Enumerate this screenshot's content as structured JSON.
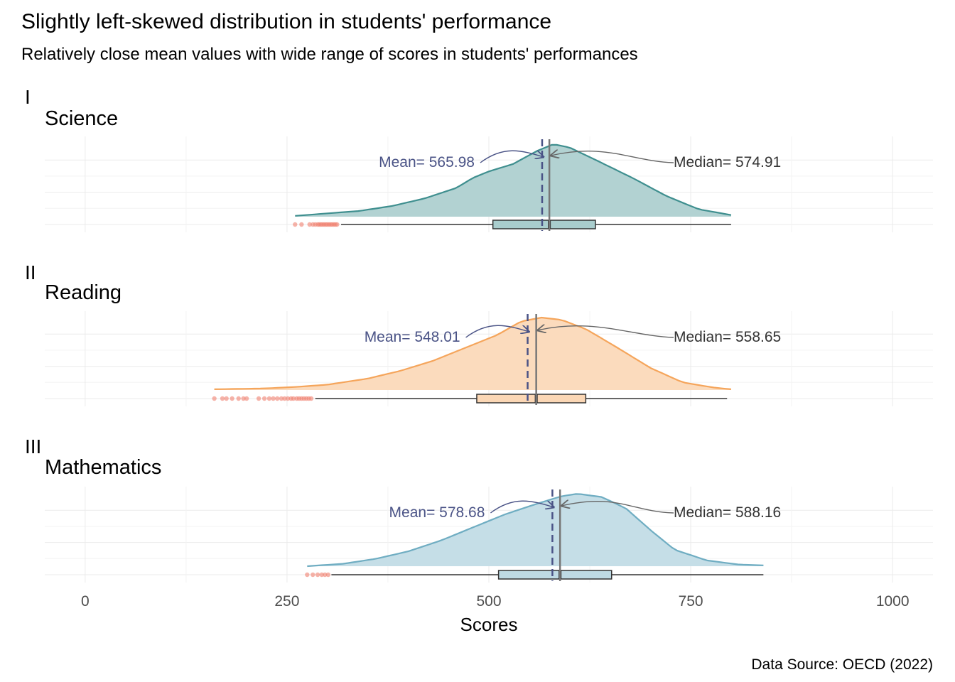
{
  "title": "Slightly left-skewed distribution in students' performance",
  "subtitle": "Relatively close mean values with wide range of scores in students' performances",
  "caption": "Data Source: OECD (2022)",
  "chart_data": {
    "type": "raincloud (density + boxplot)",
    "xlabel": "Scores",
    "xlim": [
      -50,
      1050
    ],
    "x_ticks": [
      "0",
      "250",
      "500",
      "750",
      "1000"
    ],
    "grid": "on",
    "panels": [
      {
        "roman": "I",
        "name": "Science",
        "color": "#3f8f8f",
        "mean": 565.98,
        "median": 574.91,
        "mean_label": "Mean= 565.98",
        "median_label": "Median= 574.91",
        "density_range": [
          260,
          800
        ],
        "density": [
          [
            260,
            0.01
          ],
          [
            300,
            0.04
          ],
          [
            340,
            0.07
          ],
          [
            380,
            0.13
          ],
          [
            420,
            0.22
          ],
          [
            460,
            0.35
          ],
          [
            480,
            0.47
          ],
          [
            500,
            0.55
          ],
          [
            530,
            0.64
          ],
          [
            560,
            0.8
          ],
          [
            580,
            0.88
          ],
          [
            600,
            0.84
          ],
          [
            630,
            0.7
          ],
          [
            680,
            0.46
          ],
          [
            720,
            0.25
          ],
          [
            760,
            0.09
          ],
          [
            800,
            0.02
          ]
        ],
        "box": {
          "q1": 505,
          "median": 574.91,
          "q3": 632,
          "whisker_low": 317,
          "whisker_high": 800
        },
        "outliers": [
          260,
          268,
          278,
          282,
          285,
          288,
          290,
          292,
          294,
          296,
          298,
          300,
          302,
          304,
          306,
          308,
          310,
          312
        ]
      },
      {
        "roman": "II",
        "name": "Reading",
        "color": "#f5a55b",
        "mean": 548.01,
        "median": 558.65,
        "mean_label": "Mean= 548.01",
        "median_label": "Median= 558.65",
        "density_range": [
          160,
          800
        ],
        "density": [
          [
            160,
            0.01
          ],
          [
            220,
            0.02
          ],
          [
            260,
            0.04
          ],
          [
            300,
            0.07
          ],
          [
            350,
            0.15
          ],
          [
            390,
            0.25
          ],
          [
            430,
            0.38
          ],
          [
            470,
            0.55
          ],
          [
            510,
            0.72
          ],
          [
            540,
            0.9
          ],
          [
            565,
            0.95
          ],
          [
            590,
            0.92
          ],
          [
            620,
            0.8
          ],
          [
            660,
            0.55
          ],
          [
            700,
            0.29
          ],
          [
            740,
            0.1
          ],
          [
            780,
            0.03
          ],
          [
            800,
            0.01
          ]
        ],
        "box": {
          "q1": 485,
          "median": 558.65,
          "q3": 620,
          "whisker_low": 285,
          "whisker_high": 795
        },
        "outliers": [
          160,
          170,
          175,
          182,
          190,
          196,
          200,
          215,
          222,
          228,
          233,
          238,
          243,
          247,
          251,
          255,
          258,
          262,
          265,
          268,
          271,
          274,
          277,
          280
        ]
      },
      {
        "roman": "III",
        "name": "Mathematics",
        "color": "#6fadc2",
        "mean": 578.68,
        "median": 588.16,
        "mean_label": "Mean= 578.68",
        "median_label": "Median= 588.16",
        "density_range": [
          275,
          840
        ],
        "density": [
          [
            275,
            0.0
          ],
          [
            320,
            0.03
          ],
          [
            360,
            0.09
          ],
          [
            400,
            0.18
          ],
          [
            440,
            0.31
          ],
          [
            480,
            0.47
          ],
          [
            520,
            0.63
          ],
          [
            560,
            0.76
          ],
          [
            590,
            0.85
          ],
          [
            610,
            0.88
          ],
          [
            640,
            0.84
          ],
          [
            670,
            0.7
          ],
          [
            700,
            0.44
          ],
          [
            730,
            0.2
          ],
          [
            770,
            0.07
          ],
          [
            810,
            0.02
          ],
          [
            840,
            0.01
          ]
        ],
        "box": {
          "q1": 512,
          "median": 588.16,
          "q3": 652,
          "whisker_low": 305,
          "whisker_high": 840
        },
        "outliers": [
          275,
          282,
          288,
          293,
          297,
          301
        ]
      }
    ]
  }
}
